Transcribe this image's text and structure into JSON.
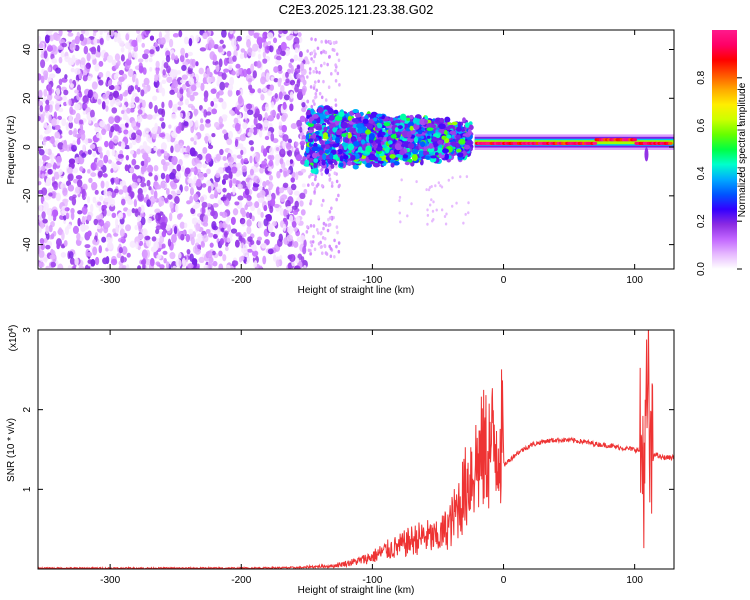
{
  "figure": {
    "title": "C2E3.2025.121.23.38.G02"
  },
  "chart_data": [
    {
      "type": "heatmap",
      "title": "C2E3.2025.121.23.38.G02",
      "xlabel": "Height of straight line (km)",
      "ylabel": "Frequency (Hz)",
      "xlim": [
        -355,
        130
      ],
      "ylim": [
        -50,
        48
      ],
      "xticks": [
        -300,
        -200,
        -100,
        0,
        100
      ],
      "yticks": [
        -40,
        -20,
        0,
        20,
        40
      ],
      "colorbar": {
        "label": "Normalized spectral amplitude",
        "range": [
          0,
          1
        ],
        "ticks": [
          "0.0",
          "0.2",
          "0.4",
          "0.6",
          "0.8"
        ],
        "colors": [
          "#ffffff",
          "#e6b8ff",
          "#c266ff",
          "#8a2be2",
          "#3300ff",
          "#0055ff",
          "#00aaff",
          "#00ffcc",
          "#00ff44",
          "#66ff00",
          "#ccff00",
          "#ffee00",
          "#ffaa00",
          "#ff5500",
          "#ff0000",
          "#ff0066",
          "#ff1a8c"
        ]
      },
      "regions": [
        {
          "x_range": [
            -355,
            -150
          ],
          "freq_range": [
            -50,
            48
          ],
          "amplitude": "low, noise-like"
        },
        {
          "x_range": [
            -150,
            -30
          ],
          "freq_range": [
            -12,
            18
          ],
          "amplitude": "0.1–0.6 scattered"
        },
        {
          "x_range": [
            -20,
            130
          ],
          "freq_center": 1.5,
          "amplitude": "up to 1.0 narrow band"
        }
      ]
    },
    {
      "type": "line",
      "xlabel": "Height of straight line (km)",
      "ylabel": "SNR (10 * v/v)",
      "y_multiplier": "(x10",
      "y_multiplier_exp": "4",
      "y_multiplier_close": ")",
      "xlim": [
        -355,
        130
      ],
      "ylim": [
        0,
        3
      ],
      "xticks": [
        -300,
        -200,
        -100,
        0,
        100
      ],
      "yticks": [
        1,
        2,
        3
      ],
      "line_color": "#ee3333",
      "series": [
        {
          "x": [
            -355,
            -300,
            -250,
            -200,
            -150,
            -130,
            -110,
            -100,
            -90,
            -80,
            -70,
            -60,
            -50,
            -40,
            -35,
            -30,
            -25,
            -20,
            -15,
            -10,
            -5,
            0,
            10,
            20,
            30,
            40,
            50,
            60,
            70,
            80,
            90,
            100,
            105,
            108,
            110,
            112,
            115,
            120,
            130
          ],
          "values": [
            0.01,
            0.01,
            0.01,
            0.01,
            0.02,
            0.03,
            0.08,
            0.12,
            0.18,
            0.22,
            0.28,
            0.32,
            0.3,
            0.45,
            0.6,
            0.75,
            0.95,
            1.05,
            1.15,
            1.2,
            1.25,
            1.3,
            1.45,
            1.55,
            1.6,
            1.62,
            1.62,
            1.6,
            1.57,
            1.55,
            1.52,
            1.5,
            1.48,
            1.3,
            2.4,
            1.2,
            1.45,
            1.4,
            1.4
          ]
        }
      ]
    }
  ]
}
